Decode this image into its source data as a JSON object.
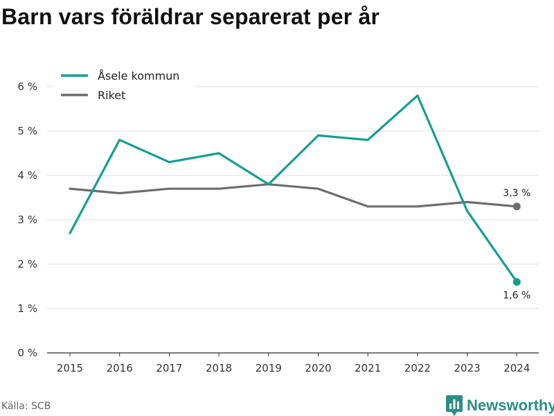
{
  "chart_data": {
    "type": "line",
    "title": "Barn vars föräldrar separerat per år",
    "xlabel": "",
    "ylabel": "",
    "x": [
      "2015",
      "2016",
      "2017",
      "2018",
      "2019",
      "2020",
      "2021",
      "2022",
      "2023",
      "2024"
    ],
    "ylim": [
      0,
      6
    ],
    "yticks": [
      0,
      1,
      2,
      3,
      4,
      5,
      6
    ],
    "ytick_labels": [
      "0 %",
      "1 %",
      "2 %",
      "3 %",
      "4 %",
      "5 %",
      "6 %"
    ],
    "grid": true,
    "legend_position": "top-left",
    "series": [
      {
        "name": "Åsele kommun",
        "color": "#139e94",
        "values": [
          2.7,
          4.8,
          4.3,
          4.5,
          3.8,
          4.9,
          4.8,
          5.8,
          3.2,
          1.6
        ],
        "end_label": "1,6 %"
      },
      {
        "name": "Riket",
        "color": "#6d6d70",
        "values": [
          3.7,
          3.6,
          3.7,
          3.7,
          3.8,
          3.7,
          3.3,
          3.3,
          3.4,
          3.3
        ],
        "end_label": "3,3 %"
      }
    ]
  },
  "footer": {
    "source": "Källa: SCB",
    "brand": "Newsworthy",
    "brand_color": "#2a8f86",
    "logo_icon": "bar-chart-logo-icon"
  }
}
